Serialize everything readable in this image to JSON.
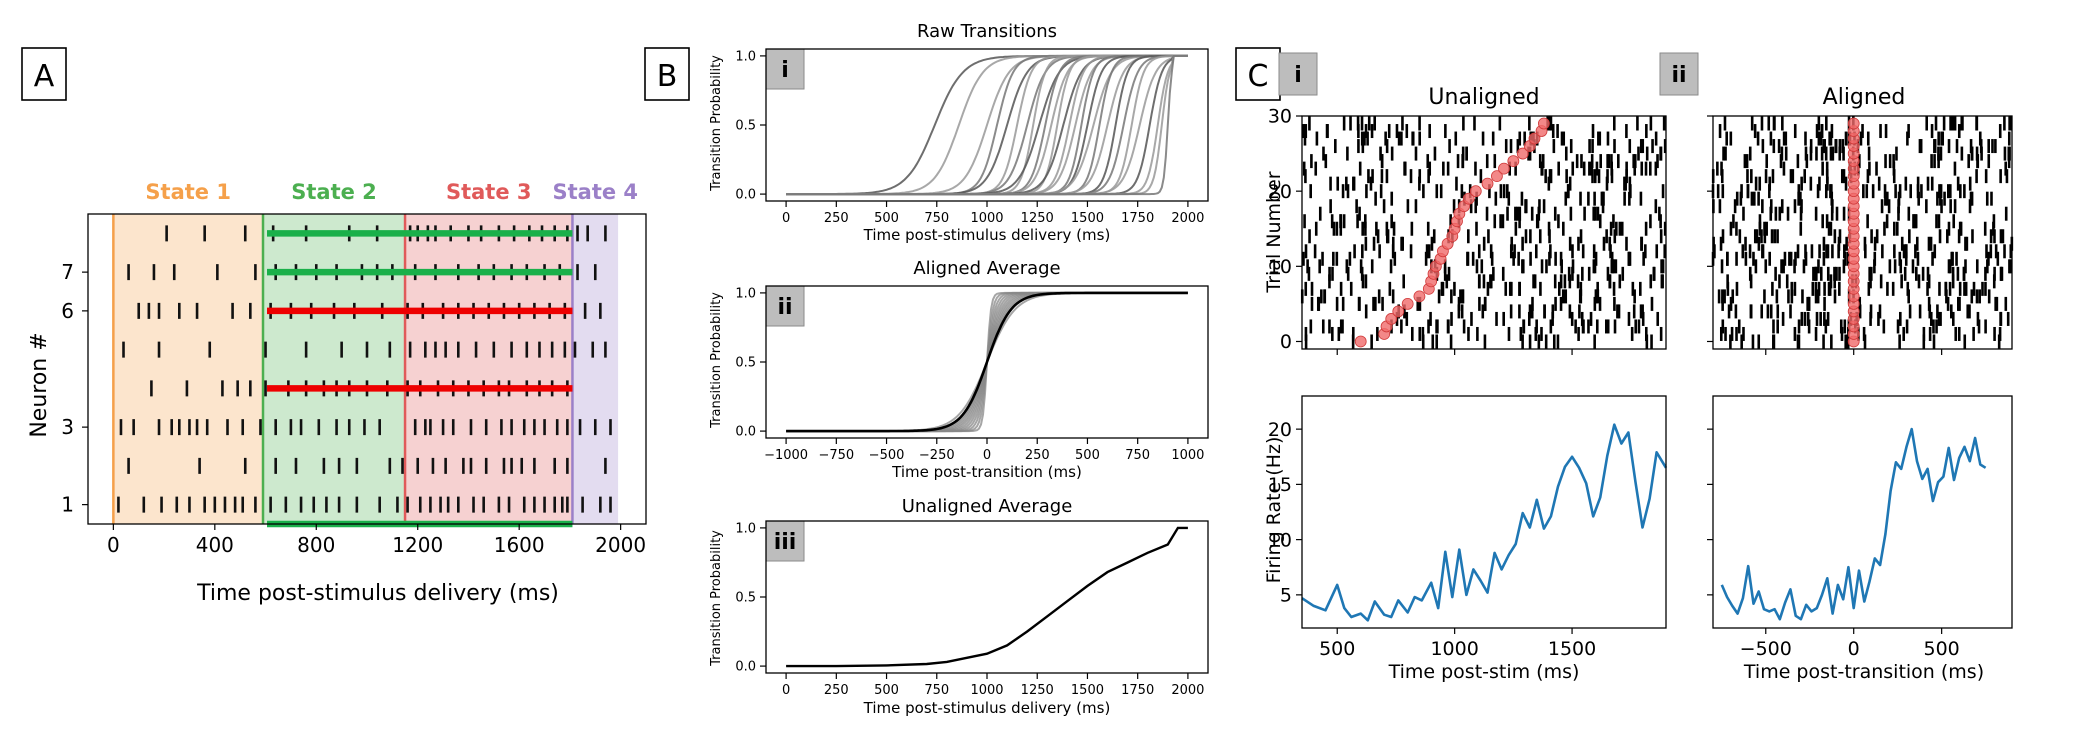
{
  "panels": {
    "a": "A",
    "b": "B",
    "c": "C",
    "b_i": "i",
    "b_ii": "ii",
    "b_iii": "iii",
    "c_i": "i",
    "c_ii": "ii"
  },
  "colors": {
    "state1": "#f5a04a",
    "state2": "#4caf50",
    "state3": "#e05a5a",
    "state4": "#9b80c8",
    "green_bar": "#1ab04a",
    "red_bar": "#ee0000",
    "trace_blue": "#1f77b4",
    "marker_red": "#f06a6a"
  },
  "chart_data": [
    {
      "id": "A",
      "type": "raster",
      "title": "",
      "xlabel": "Time post-stimulus delivery (ms)",
      "ylabel": "Neuron #",
      "xlim": [
        -100,
        2100
      ],
      "ylim": [
        0.5,
        8.5
      ],
      "xticks": [
        0,
        400,
        800,
        1200,
        1600,
        2000
      ],
      "yticks": [
        1,
        3,
        6,
        7
      ],
      "ytick_rows": [
        1,
        3,
        6,
        7
      ],
      "states": [
        {
          "name": "State 1",
          "start": 0,
          "end": 590,
          "color": "#f5a04a"
        },
        {
          "name": "State 2",
          "start": 590,
          "end": 1150,
          "color": "#4caf50"
        },
        {
          "name": "State 3",
          "start": 1150,
          "end": 1810,
          "color": "#e05a5a"
        },
        {
          "name": "State 4",
          "start": 1810,
          "end": 1990,
          "color": "#9b80c8"
        }
      ],
      "bars": [
        {
          "row": 8.0,
          "start": 590,
          "end": 1810,
          "color": "green"
        },
        {
          "row": 7.0,
          "start": 590,
          "end": 1810,
          "color": "green"
        },
        {
          "row": 6.0,
          "start": 590,
          "end": 1810,
          "color": "red"
        },
        {
          "row": 4.0,
          "start": 590,
          "end": 1810,
          "color": "red"
        },
        {
          "row": 0.5,
          "start": 590,
          "end": 1810,
          "color": "green"
        }
      ],
      "spikes": [
        [
          1,
          [
            20,
            120,
            190,
            250,
            300,
            360,
            400,
            440,
            480,
            510,
            560,
            620,
            680,
            740,
            790,
            840,
            890,
            960,
            1050,
            1120,
            1160,
            1210,
            1250,
            1290,
            1320,
            1360,
            1420,
            1460,
            1520,
            1560,
            1620,
            1660,
            1700,
            1740,
            1770,
            1790,
            1850,
            1920,
            1960
          ]
        ],
        [
          2,
          [
            60,
            340,
            520,
            640,
            720,
            830,
            890,
            960,
            1090,
            1140,
            1200,
            1260,
            1310,
            1380,
            1410,
            1470,
            1540,
            1570,
            1610,
            1660,
            1740,
            1790,
            1940
          ]
        ],
        [
          3,
          [
            30,
            80,
            180,
            230,
            260,
            300,
            330,
            370,
            450,
            510,
            580,
            640,
            700,
            740,
            810,
            880,
            930,
            990,
            1050,
            1190,
            1230,
            1250,
            1300,
            1340,
            1410,
            1470,
            1530,
            1570,
            1620,
            1660,
            1700,
            1750,
            1790,
            1840,
            1900,
            1960
          ]
        ],
        [
          4,
          [
            150,
            290,
            430,
            490,
            540,
            600,
            690,
            760,
            830,
            880,
            930,
            1000,
            1080,
            1160,
            1210,
            1280,
            1340,
            1400,
            1460,
            1520,
            1560,
            1630,
            1680,
            1730,
            1790
          ]
        ],
        [
          5,
          [
            40,
            180,
            380,
            600,
            760,
            900,
            1000,
            1090,
            1170,
            1230,
            1270,
            1310,
            1360,
            1430,
            1500,
            1570,
            1630,
            1680,
            1730,
            1780,
            1820,
            1890,
            1940
          ]
        ],
        [
          6,
          [
            100,
            140,
            180,
            260,
            330,
            470,
            540,
            620,
            700,
            780,
            870,
            950,
            1060,
            1160,
            1220,
            1300,
            1360,
            1420,
            1480,
            1540,
            1600,
            1660,
            1720,
            1780,
            1860,
            1920
          ]
        ],
        [
          7,
          [
            60,
            160,
            240,
            410,
            560,
            640,
            720,
            800,
            880,
            980,
            1040,
            1100,
            1190,
            1270,
            1360,
            1440,
            1500,
            1570,
            1630,
            1700,
            1760,
            1830,
            1900
          ]
        ],
        [
          8,
          [
            210,
            360,
            520,
            630,
            760,
            930,
            1040,
            1170,
            1200,
            1240,
            1270,
            1330,
            1400,
            1450,
            1520,
            1580,
            1640,
            1690,
            1740,
            1790,
            1830,
            1870,
            1940
          ]
        ]
      ]
    },
    {
      "id": "B.i",
      "type": "line",
      "title": "Raw Transitions",
      "xlabel": "Time post-stimulus delivery (ms)",
      "ylabel": "Transition Probability",
      "xlim": [
        -100,
        2100
      ],
      "ylim": [
        -0.05,
        1.05
      ],
      "xticks": [
        0,
        250,
        500,
        750,
        1000,
        1250,
        1500,
        1750,
        2000
      ],
      "yticks": [
        0.0,
        0.5,
        1.0
      ],
      "ytick_labels": [
        "0.0",
        "0.5",
        "1.0"
      ],
      "series_gray": [
        {
          "center": 740,
          "width": 70
        },
        {
          "center": 860,
          "width": 60
        },
        {
          "center": 1000,
          "width": 55
        },
        {
          "center": 1050,
          "width": 40
        },
        {
          "center": 1100,
          "width": 50
        },
        {
          "center": 1150,
          "width": 35
        },
        {
          "center": 1200,
          "width": 45
        },
        {
          "center": 1230,
          "width": 30
        },
        {
          "center": 1260,
          "width": 50
        },
        {
          "center": 1290,
          "width": 35
        },
        {
          "center": 1320,
          "width": 40
        },
        {
          "center": 1350,
          "width": 30
        },
        {
          "center": 1380,
          "width": 45
        },
        {
          "center": 1410,
          "width": 35
        },
        {
          "center": 1440,
          "width": 40
        },
        {
          "center": 1470,
          "width": 30
        },
        {
          "center": 1500,
          "width": 35
        },
        {
          "center": 1530,
          "width": 45
        },
        {
          "center": 1560,
          "width": 30
        },
        {
          "center": 1600,
          "width": 40
        },
        {
          "center": 1640,
          "width": 30
        },
        {
          "center": 1680,
          "width": 35
        },
        {
          "center": 1720,
          "width": 30
        },
        {
          "center": 1760,
          "width": 40
        },
        {
          "center": 1810,
          "width": 30
        },
        {
          "center": 1850,
          "width": 25
        },
        {
          "center": 1870,
          "width": 20
        },
        {
          "center": 1900,
          "width": 10
        }
      ]
    },
    {
      "id": "B.ii",
      "type": "line",
      "title": "Aligned Average",
      "xlabel": "Time post-transition (ms)",
      "ylabel": "Transition Probability",
      "xlim": [
        -1100,
        1100
      ],
      "ylim": [
        -0.05,
        1.05
      ],
      "xticks": [
        -1000,
        -750,
        -500,
        -250,
        0,
        250,
        500,
        750,
        1000
      ],
      "yticks": [
        0.0,
        0.5,
        1.0
      ],
      "ytick_labels": [
        "0.0",
        "0.5",
        "1.0"
      ],
      "gray_widths": [
        10,
        15,
        20,
        25,
        30,
        35,
        40,
        45,
        50,
        55,
        60,
        70
      ],
      "mean_width": 60
    },
    {
      "id": "B.iii",
      "type": "line",
      "title": "Unaligned Average",
      "xlabel": "Time post-stimulus delivery (ms)",
      "ylabel": "Transition Probability",
      "xlim": [
        -100,
        2100
      ],
      "ylim": [
        -0.05,
        1.05
      ],
      "xticks": [
        0,
        250,
        500,
        750,
        1000,
        1250,
        1500,
        1750,
        2000
      ],
      "yticks": [
        0.0,
        0.5,
        1.0
      ],
      "ytick_labels": [
        "0.0",
        "0.5",
        "1.0"
      ],
      "x": [
        0,
        250,
        500,
        700,
        800,
        900,
        1000,
        1100,
        1200,
        1300,
        1400,
        1500,
        1600,
        1700,
        1800,
        1900,
        1950,
        2000
      ],
      "y": [
        0.0,
        0.0,
        0.005,
        0.015,
        0.03,
        0.06,
        0.09,
        0.15,
        0.25,
        0.36,
        0.47,
        0.58,
        0.68,
        0.75,
        0.82,
        0.88,
        1.0,
        1.0
      ]
    },
    {
      "id": "C.i.raster",
      "type": "raster",
      "title": "Unaligned",
      "ylabel": "Trial Number",
      "xlim": [
        350,
        1900
      ],
      "ylim": [
        -1,
        30
      ],
      "xticks": [
        500,
        1000,
        1500
      ],
      "yticks": [
        0,
        10,
        20,
        30
      ],
      "transitions_x": [
        600,
        700,
        710,
        730,
        760,
        800,
        850,
        890,
        900,
        910,
        920,
        940,
        950,
        970,
        990,
        1000,
        1010,
        1020,
        1040,
        1060,
        1090,
        1140,
        1180,
        1210,
        1250,
        1290,
        1320,
        1340,
        1370,
        1380,
        1400,
        1420,
        1430,
        1440,
        1460,
        1480,
        1500,
        1550,
        1580
      ]
    },
    {
      "id": "C.ii.raster",
      "type": "raster",
      "title": "Aligned",
      "xlim": [
        -800,
        900
      ],
      "ylim": [
        -1,
        30
      ],
      "xticks": [
        -500,
        0,
        500
      ],
      "yticks": [
        0,
        10,
        20,
        30
      ]
    },
    {
      "id": "C.i.rate",
      "type": "line",
      "xlabel": "Time post-stim (ms)",
      "ylabel": "Firing Rate (Hz)",
      "xlim": [
        350,
        1900
      ],
      "ylim": [
        2,
        23
      ],
      "xticks": [
        500,
        1000,
        1500
      ],
      "yticks": [
        5,
        10,
        15,
        20
      ],
      "x": [
        350,
        400,
        450,
        500,
        530,
        560,
        600,
        630,
        660,
        700,
        730,
        760,
        800,
        830,
        860,
        900,
        930,
        960,
        990,
        1020,
        1050,
        1080,
        1110,
        1140,
        1170,
        1200,
        1230,
        1260,
        1290,
        1320,
        1350,
        1380,
        1410,
        1440,
        1470,
        1500,
        1530,
        1560,
        1590,
        1620,
        1650,
        1680,
        1710,
        1740,
        1770,
        1800,
        1830,
        1860,
        1900
      ],
      "y": [
        4.7,
        4.0,
        3.6,
        5.9,
        3.8,
        3.0,
        3.3,
        2.7,
        4.4,
        3.2,
        3.0,
        4.5,
        3.4,
        4.8,
        4.5,
        6.1,
        3.8,
        8.9,
        4.8,
        9.1,
        5.0,
        7.3,
        6.3,
        5.2,
        8.8,
        7.3,
        8.6,
        9.6,
        12.4,
        11.1,
        13.6,
        11.0,
        12.1,
        14.8,
        16.6,
        17.5,
        16.5,
        15.1,
        12.1,
        13.8,
        17.6,
        20.4,
        18.7,
        19.7,
        15.2,
        11.1,
        13.7,
        17.9,
        16.5
      ]
    },
    {
      "id": "C.ii.rate",
      "type": "line",
      "xlabel": "Time post-transition (ms)",
      "xlim": [
        -800,
        900
      ],
      "ylim": [
        2,
        23
      ],
      "xticks": [
        -500,
        0,
        500
      ],
      "yticks": [
        5,
        10,
        15,
        20
      ],
      "x": [
        -750,
        -720,
        -690,
        -660,
        -630,
        -600,
        -570,
        -540,
        -510,
        -480,
        -450,
        -420,
        -390,
        -360,
        -330,
        -300,
        -270,
        -240,
        -210,
        -180,
        -150,
        -120,
        -90,
        -60,
        -30,
        0,
        30,
        60,
        90,
        120,
        150,
        180,
        210,
        240,
        270,
        300,
        330,
        360,
        390,
        420,
        450,
        480,
        510,
        540,
        570,
        600,
        630,
        660,
        690,
        720,
        750
      ],
      "y": [
        5.9,
        4.8,
        4.0,
        3.3,
        4.7,
        7.6,
        4.2,
        5.3,
        3.7,
        3.5,
        3.7,
        2.8,
        4.3,
        5.5,
        3.1,
        2.8,
        4.1,
        3.5,
        3.8,
        5.0,
        6.5,
        3.3,
        5.9,
        4.6,
        7.5,
        3.8,
        7.2,
        4.4,
        6.2,
        8.3,
        7.7,
        10.5,
        14.4,
        17.0,
        16.4,
        18.4,
        20.0,
        17.1,
        15.5,
        16.4,
        13.5,
        15.2,
        15.7,
        18.3,
        15.4,
        17.4,
        18.4,
        17.1,
        19.2,
        16.8,
        16.5
      ]
    }
  ]
}
